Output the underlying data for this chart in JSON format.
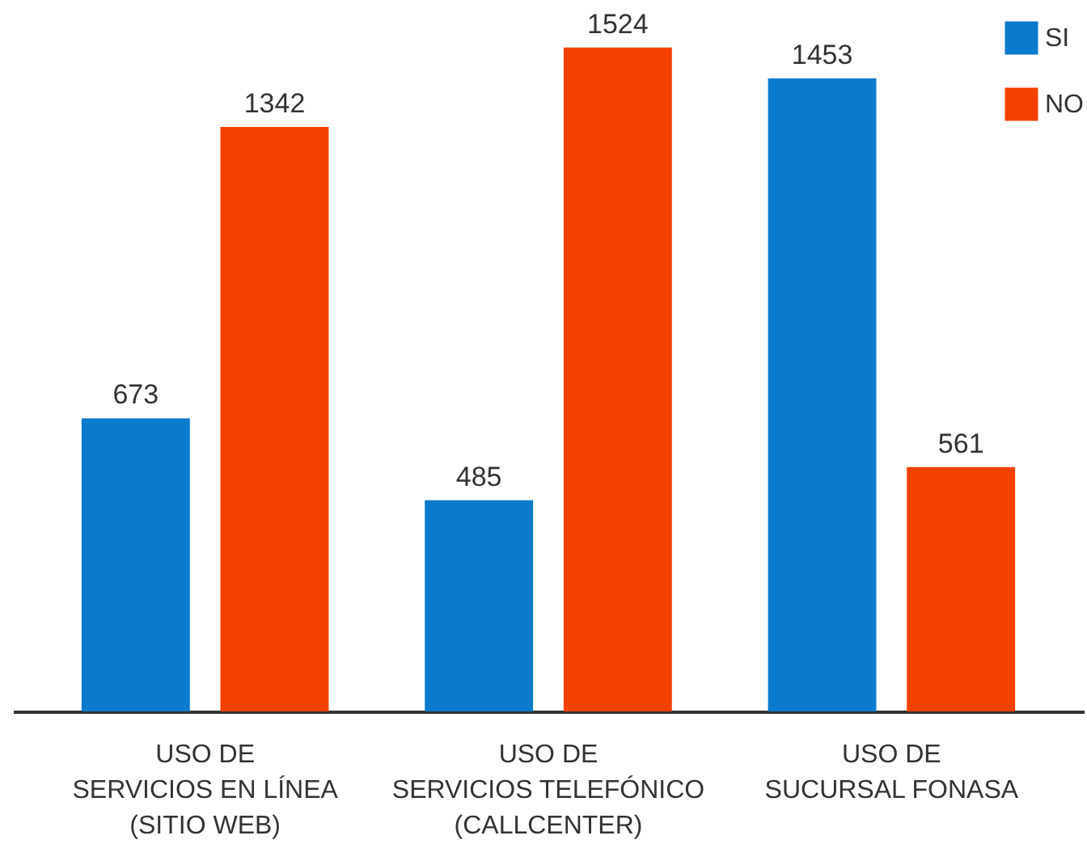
{
  "chart_data": {
    "type": "bar",
    "categories": [
      "USO DE\nSERVICIOS EN LÍNEA\n(SITIO WEB)",
      "USO DE\nSERVICIOS TELEFÓNICO\n(CALLCENTER)",
      "USO DE\nSUCURSAL FONASA"
    ],
    "series": [
      {
        "name": "SI",
        "color": "#0a7acc",
        "values": [
          673,
          485,
          1453
        ]
      },
      {
        "name": "NO",
        "color": "#f44100",
        "values": [
          1342,
          1524,
          561
        ]
      }
    ],
    "data_labels": true,
    "legend": "top right"
  }
}
